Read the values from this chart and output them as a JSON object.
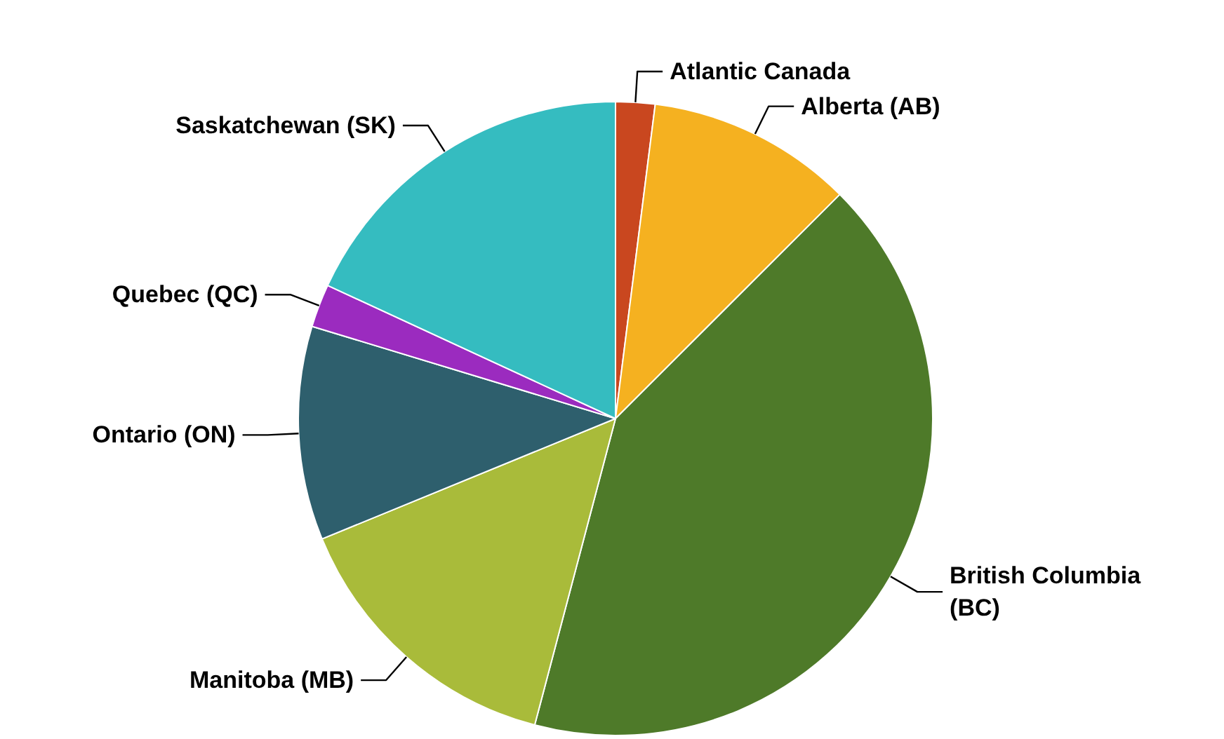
{
  "chart_data": {
    "type": "pie",
    "categories": [
      "Atlantic Canada",
      "Alberta (AB)",
      "British Columbia (BC)",
      "Manitoba (MB)",
      "Ontario (ON)",
      "Quebec (QC)",
      "Saskatchewan (SK)"
    ],
    "values": [
      2,
      10.5,
      41.6,
      14.7,
      10.9,
      2.2,
      18.1
    ],
    "colors": [
      "#c9471f",
      "#f5b120",
      "#4e7a29",
      "#a9bb3a",
      "#2e5f6d",
      "#9b2bbf",
      "#35bcc0"
    ]
  }
}
